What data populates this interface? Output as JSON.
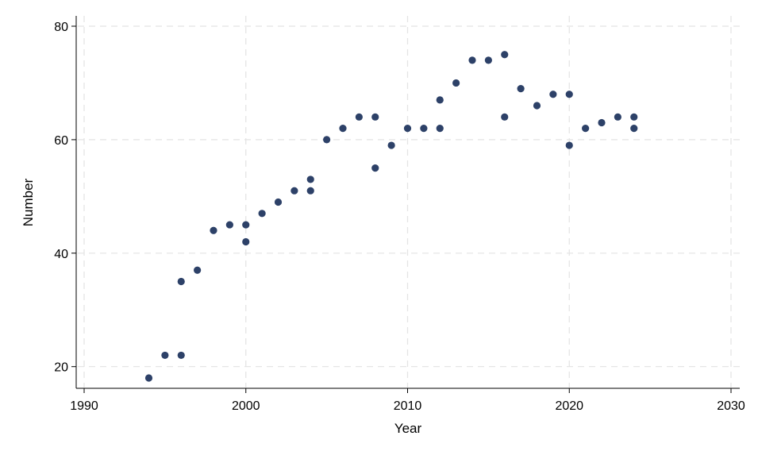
{
  "chart_data": {
    "type": "scatter",
    "title": "",
    "xlabel": "Year",
    "ylabel": "Number",
    "xlim": [
      1990,
      2030
    ],
    "ylim": [
      16.5,
      81.5
    ],
    "xticks": [
      1990,
      2000,
      2010,
      2020,
      2030
    ],
    "yticks": [
      20,
      40,
      60,
      80
    ],
    "grid": true,
    "marker_color": "#2d4168",
    "points": [
      {
        "x": 1994,
        "y": 18
      },
      {
        "x": 1995,
        "y": 22
      },
      {
        "x": 1996,
        "y": 22
      },
      {
        "x": 1996,
        "y": 35
      },
      {
        "x": 1997,
        "y": 37
      },
      {
        "x": 1998,
        "y": 44
      },
      {
        "x": 1999,
        "y": 45
      },
      {
        "x": 2000,
        "y": 45
      },
      {
        "x": 2000,
        "y": 42
      },
      {
        "x": 2001,
        "y": 47
      },
      {
        "x": 2002,
        "y": 49
      },
      {
        "x": 2003,
        "y": 51
      },
      {
        "x": 2004,
        "y": 51
      },
      {
        "x": 2004,
        "y": 53
      },
      {
        "x": 2005,
        "y": 60
      },
      {
        "x": 2006,
        "y": 62
      },
      {
        "x": 2007,
        "y": 64
      },
      {
        "x": 2008,
        "y": 64
      },
      {
        "x": 2008,
        "y": 55
      },
      {
        "x": 2009,
        "y": 59
      },
      {
        "x": 2010,
        "y": 62
      },
      {
        "x": 2011,
        "y": 62
      },
      {
        "x": 2012,
        "y": 62
      },
      {
        "x": 2012,
        "y": 67
      },
      {
        "x": 2013,
        "y": 70
      },
      {
        "x": 2014,
        "y": 74
      },
      {
        "x": 2015,
        "y": 74
      },
      {
        "x": 2016,
        "y": 75
      },
      {
        "x": 2016,
        "y": 64
      },
      {
        "x": 2017,
        "y": 69
      },
      {
        "x": 2018,
        "y": 66
      },
      {
        "x": 2019,
        "y": 68
      },
      {
        "x": 2020,
        "y": 68
      },
      {
        "x": 2020,
        "y": 59
      },
      {
        "x": 2021,
        "y": 62
      },
      {
        "x": 2022,
        "y": 63
      },
      {
        "x": 2023,
        "y": 64
      },
      {
        "x": 2024,
        "y": 64
      },
      {
        "x": 2024,
        "y": 62
      }
    ]
  }
}
